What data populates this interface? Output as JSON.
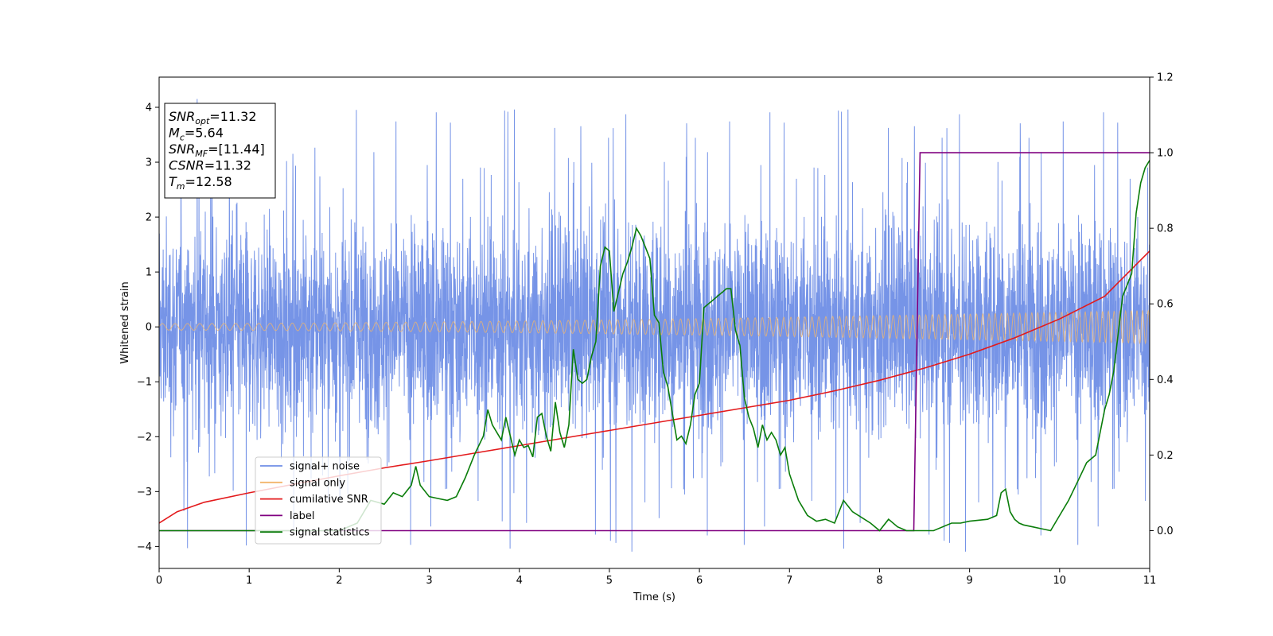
{
  "chart_data": {
    "type": "line",
    "xlabel": "Time (s)",
    "ylabel": "Whitened strain",
    "xlim": [
      0,
      11
    ],
    "ylim_left": [
      -4.4,
      4.55
    ],
    "ylim_right": [
      -0.1,
      1.2
    ],
    "x_ticks": [
      0,
      1,
      2,
      3,
      4,
      5,
      6,
      7,
      8,
      9,
      10,
      11
    ],
    "y_ticks_left": [
      -4,
      -3,
      -2,
      -1,
      0,
      1,
      2,
      3,
      4
    ],
    "y_ticks_right": [
      0.0,
      0.2,
      0.4,
      0.6,
      0.8,
      1.0,
      1.2
    ],
    "y_tick_labels_left": [
      "−4",
      "−3",
      "−2",
      "−1",
      "0",
      "1",
      "2",
      "3",
      "4"
    ],
    "y_tick_labels_right": [
      "0.0",
      "0.2",
      "0.4",
      "0.6",
      "0.8",
      "1.0",
      "1.2"
    ],
    "grid": false,
    "legend_position": "lower-left",
    "series": [
      {
        "name": "signal+ noise",
        "axis": "left",
        "color": "#6f8ee6",
        "style": "dense-noise",
        "typical_amplitude": 2.4,
        "peak_amplitude": 4.2
      },
      {
        "name": "signal only",
        "axis": "left",
        "color": "#f2b56b",
        "style": "chirp",
        "amplitude_start": 0.06,
        "amplitude_end": 0.3,
        "frequency_start": 7,
        "frequency_end": 16
      },
      {
        "name": "cumilative SNR",
        "axis": "right",
        "color": "#e31a1c",
        "x": [
          0,
          0.2,
          0.5,
          1,
          1.5,
          2,
          2.5,
          3,
          3.5,
          4,
          4.5,
          5,
          5.5,
          6,
          6.5,
          7,
          7.5,
          8,
          8.5,
          9,
          9.5,
          10,
          10.5,
          11
        ],
        "y": [
          0.02,
          0.05,
          0.075,
          0.1,
          0.123,
          0.145,
          0.166,
          0.185,
          0.205,
          0.225,
          0.245,
          0.265,
          0.285,
          0.305,
          0.325,
          0.345,
          0.37,
          0.398,
          0.43,
          0.467,
          0.51,
          0.56,
          0.62,
          0.74
        ]
      },
      {
        "name": "label",
        "axis": "right",
        "color": "#800080",
        "x": [
          0,
          8.38,
          8.45,
          11
        ],
        "y": [
          0,
          0,
          1,
          1
        ]
      },
      {
        "name": "signal statistics",
        "axis": "right",
        "color": "#0a7d0a",
        "x": [
          0,
          0.5,
          1,
          1.5,
          2,
          2.2,
          2.35,
          2.5,
          2.6,
          2.7,
          2.8,
          2.85,
          2.9,
          3.0,
          3.1,
          3.2,
          3.3,
          3.4,
          3.5,
          3.6,
          3.65,
          3.7,
          3.8,
          3.85,
          3.9,
          3.95,
          4.0,
          4.05,
          4.1,
          4.15,
          4.2,
          4.25,
          4.3,
          4.35,
          4.4,
          4.45,
          4.5,
          4.55,
          4.6,
          4.65,
          4.7,
          4.75,
          4.8,
          4.85,
          4.9,
          4.95,
          5.0,
          5.05,
          5.1,
          5.15,
          5.2,
          5.25,
          5.3,
          5.35,
          5.4,
          5.45,
          5.5,
          5.55,
          5.6,
          5.65,
          5.7,
          5.75,
          5.8,
          5.85,
          5.9,
          5.95,
          6.0,
          6.05,
          6.1,
          6.15,
          6.2,
          6.25,
          6.3,
          6.35,
          6.4,
          6.45,
          6.5,
          6.55,
          6.6,
          6.65,
          6.7,
          6.75,
          6.8,
          6.85,
          6.9,
          6.95,
          7.0,
          7.1,
          7.2,
          7.3,
          7.4,
          7.5,
          7.6,
          7.7,
          7.8,
          7.9,
          8.0,
          8.1,
          8.2,
          8.3,
          8.4,
          8.6,
          8.8,
          8.9,
          9.0,
          9.2,
          9.3,
          9.35,
          9.4,
          9.45,
          9.5,
          9.55,
          9.6,
          9.7,
          9.8,
          9.9,
          10.0,
          10.1,
          10.2,
          10.3,
          10.4,
          10.5,
          10.55,
          10.6,
          10.7,
          10.8,
          10.85,
          10.9,
          10.95,
          11.0
        ],
        "y": [
          0.0,
          0.0,
          0.0,
          0.0,
          0.0,
          0.02,
          0.08,
          0.07,
          0.1,
          0.09,
          0.12,
          0.17,
          0.12,
          0.09,
          0.085,
          0.08,
          0.09,
          0.14,
          0.2,
          0.25,
          0.32,
          0.28,
          0.24,
          0.3,
          0.25,
          0.2,
          0.24,
          0.22,
          0.225,
          0.195,
          0.3,
          0.31,
          0.25,
          0.21,
          0.34,
          0.26,
          0.22,
          0.28,
          0.48,
          0.4,
          0.39,
          0.4,
          0.46,
          0.5,
          0.7,
          0.75,
          0.74,
          0.58,
          0.63,
          0.68,
          0.71,
          0.75,
          0.8,
          0.78,
          0.75,
          0.72,
          0.57,
          0.55,
          0.42,
          0.38,
          0.31,
          0.24,
          0.25,
          0.23,
          0.28,
          0.36,
          0.39,
          0.59,
          0.6,
          0.61,
          0.62,
          0.63,
          0.64,
          0.64,
          0.53,
          0.49,
          0.35,
          0.3,
          0.27,
          0.22,
          0.28,
          0.24,
          0.26,
          0.24,
          0.2,
          0.22,
          0.15,
          0.08,
          0.04,
          0.025,
          0.03,
          0.02,
          0.08,
          0.05,
          0.035,
          0.02,
          0.0,
          0.03,
          0.01,
          0.0,
          0.0,
          0.0,
          0.02,
          0.02,
          0.025,
          0.03,
          0.04,
          0.1,
          0.11,
          0.05,
          0.03,
          0.02,
          0.015,
          0.01,
          0.005,
          0.0,
          0.04,
          0.08,
          0.13,
          0.18,
          0.2,
          0.32,
          0.36,
          0.42,
          0.62,
          0.68,
          0.84,
          0.92,
          0.96,
          0.98
        ]
      }
    ],
    "legend": [
      "signal+ noise",
      "signal only",
      "cumilative SNR",
      "label",
      "signal statistics"
    ],
    "annotation": [
      {
        "var": "SNR",
        "sub": "opt",
        "value": "=11.32"
      },
      {
        "var": "M",
        "sub": "c",
        "value": "=5.64"
      },
      {
        "var": "SNR",
        "sub": "MF",
        "value": "=[11.44]"
      },
      {
        "var": "CSNR",
        "sub": "",
        "value": "=11.32"
      },
      {
        "var": "T",
        "sub": "m",
        "value": "=12.58"
      }
    ]
  }
}
